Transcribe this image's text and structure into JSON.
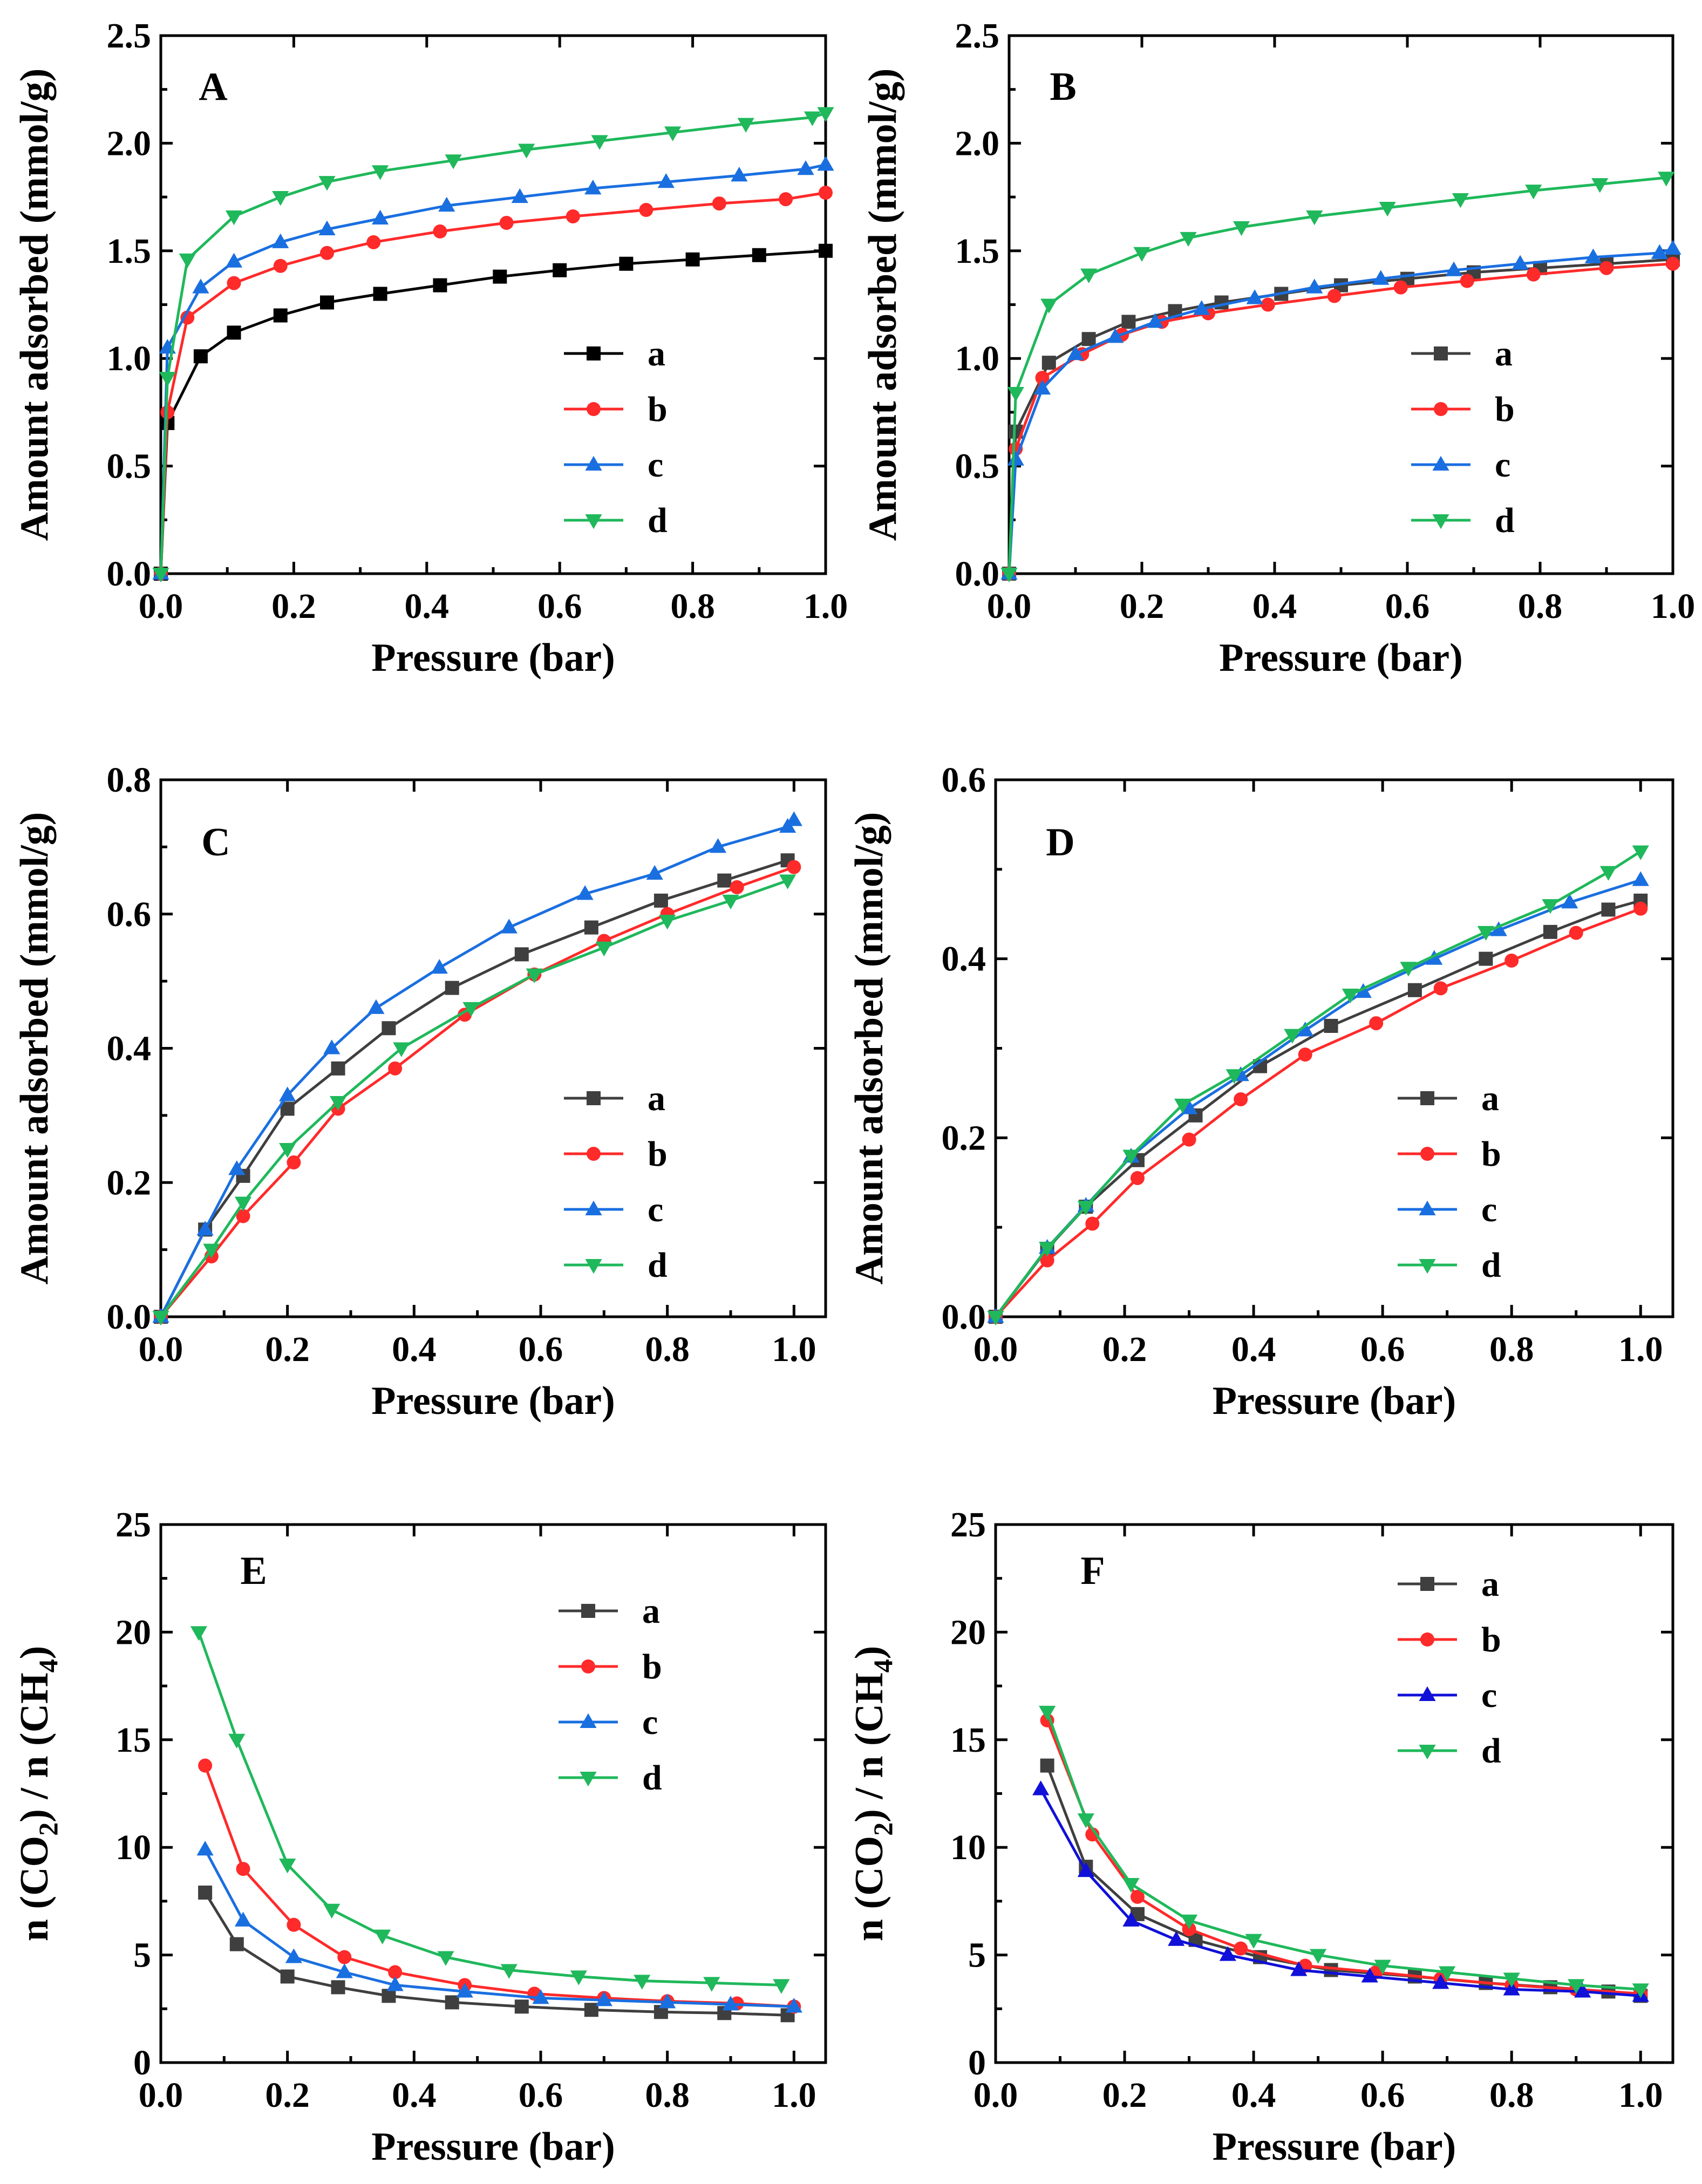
{
  "figure": {
    "description_free": true
  },
  "colors": {
    "a": "#3f3f3f",
    "b": "#ff2a2a",
    "c": "#1a6fe0",
    "d": "#1fb85b",
    "c_F": "#1010d8",
    "a_A": "#000000"
  },
  "chart_data": [
    {
      "panel": "A",
      "type": "line",
      "title": "A",
      "xlabel": "Pressure (bar)",
      "ylabel": "Amount adsorbed (mmol/g)",
      "xlim": [
        0,
        1.0
      ],
      "ylim": [
        0,
        2.5
      ],
      "xticks": [
        "0.0",
        "0.2",
        "0.4",
        "0.6",
        "0.8",
        "1.0"
      ],
      "yticks": [
        "0.0",
        "0.5",
        "1.0",
        "1.5",
        "2.0",
        "2.5"
      ],
      "legend": "right-middle",
      "series": [
        {
          "name": "a",
          "marker": "square",
          "x": [
            0,
            0.01,
            0.06,
            0.11,
            0.18,
            0.25,
            0.33,
            0.42,
            0.51,
            0.6,
            0.7,
            0.8,
            0.9,
            1.0
          ],
          "values": [
            0,
            0.7,
            1.01,
            1.12,
            1.2,
            1.26,
            1.3,
            1.34,
            1.38,
            1.41,
            1.44,
            1.46,
            1.48,
            1.5
          ]
        },
        {
          "name": "b",
          "marker": "circle",
          "x": [
            0,
            0.01,
            0.04,
            0.11,
            0.18,
            0.25,
            0.32,
            0.42,
            0.52,
            0.62,
            0.73,
            0.84,
            0.94,
            1.0
          ],
          "values": [
            0,
            0.75,
            1.19,
            1.35,
            1.43,
            1.49,
            1.54,
            1.59,
            1.63,
            1.66,
            1.69,
            1.72,
            1.74,
            1.77
          ]
        },
        {
          "name": "c",
          "marker": "triangle-up",
          "x": [
            0,
            0.01,
            0.06,
            0.11,
            0.18,
            0.25,
            0.33,
            0.43,
            0.54,
            0.65,
            0.76,
            0.87,
            0.97,
            1.0
          ],
          "values": [
            0,
            1.05,
            1.33,
            1.45,
            1.54,
            1.6,
            1.65,
            1.71,
            1.75,
            1.79,
            1.82,
            1.85,
            1.88,
            1.9
          ]
        },
        {
          "name": "d",
          "marker": "triangle-down",
          "x": [
            0,
            0.01,
            0.04,
            0.11,
            0.18,
            0.25,
            0.33,
            0.44,
            0.55,
            0.66,
            0.77,
            0.88,
            0.98,
            1.0
          ],
          "values": [
            0,
            0.91,
            1.46,
            1.66,
            1.75,
            1.82,
            1.87,
            1.92,
            1.97,
            2.01,
            2.05,
            2.09,
            2.12,
            2.14
          ]
        }
      ]
    },
    {
      "panel": "B",
      "type": "line",
      "title": "B",
      "xlabel": "Pressure (bar)",
      "ylabel": "Amount adsorbed (mmol/g)",
      "xlim": [
        0,
        1.0
      ],
      "ylim": [
        0,
        2.5
      ],
      "xticks": [
        "0.0",
        "0.2",
        "0.4",
        "0.6",
        "0.8",
        "1.0"
      ],
      "yticks": [
        "0.0",
        "0.5",
        "1.0",
        "1.5",
        "2.0",
        "2.5"
      ],
      "legend": "right-middle",
      "series": [
        {
          "name": "a",
          "marker": "square",
          "x": [
            0,
            0.01,
            0.06,
            0.12,
            0.18,
            0.25,
            0.32,
            0.41,
            0.5,
            0.6,
            0.7,
            0.8,
            0.9,
            1.0
          ],
          "values": [
            0,
            0.66,
            0.98,
            1.09,
            1.17,
            1.22,
            1.26,
            1.3,
            1.34,
            1.37,
            1.4,
            1.42,
            1.44,
            1.46
          ]
        },
        {
          "name": "b",
          "marker": "circle",
          "x": [
            0,
            0.01,
            0.05,
            0.11,
            0.17,
            0.23,
            0.3,
            0.39,
            0.49,
            0.59,
            0.69,
            0.79,
            0.9,
            1.0
          ],
          "values": [
            0,
            0.58,
            0.91,
            1.02,
            1.11,
            1.17,
            1.21,
            1.25,
            1.29,
            1.33,
            1.36,
            1.39,
            1.42,
            1.44
          ]
        },
        {
          "name": "c",
          "marker": "triangle-up",
          "x": [
            0,
            0.01,
            0.05,
            0.1,
            0.16,
            0.22,
            0.29,
            0.37,
            0.46,
            0.56,
            0.67,
            0.77,
            0.88,
            0.98,
            1.0
          ],
          "values": [
            0,
            0.53,
            0.86,
            1.02,
            1.1,
            1.17,
            1.23,
            1.28,
            1.33,
            1.37,
            1.41,
            1.44,
            1.47,
            1.49,
            1.51
          ]
        },
        {
          "name": "d",
          "marker": "triangle-down",
          "x": [
            0,
            0.01,
            0.06,
            0.12,
            0.2,
            0.27,
            0.35,
            0.46,
            0.57,
            0.68,
            0.79,
            0.89,
            0.99
          ],
          "values": [
            0,
            0.84,
            1.25,
            1.39,
            1.49,
            1.56,
            1.61,
            1.66,
            1.7,
            1.74,
            1.78,
            1.81,
            1.84
          ]
        }
      ]
    },
    {
      "panel": "C",
      "type": "line",
      "title": "C",
      "xlabel": "Pressure (bar)",
      "ylabel": "Amount adsorbed (mmol/g)",
      "xlim": [
        0,
        1.05
      ],
      "ylim": [
        0,
        0.8
      ],
      "xticks": [
        "0.0",
        "0.2",
        "0.4",
        "0.6",
        "0.8",
        "1.0"
      ],
      "yticks": [
        "0.0",
        "0.2",
        "0.4",
        "0.6",
        "0.8"
      ],
      "legend": "right-middle",
      "series": [
        {
          "name": "a",
          "marker": "square",
          "x": [
            0,
            0.07,
            0.13,
            0.2,
            0.28,
            0.36,
            0.46,
            0.57,
            0.68,
            0.79,
            0.89,
            0.99
          ],
          "values": [
            0,
            0.13,
            0.21,
            0.31,
            0.37,
            0.43,
            0.49,
            0.54,
            0.58,
            0.62,
            0.65,
            0.68
          ]
        },
        {
          "name": "b",
          "marker": "circle",
          "x": [
            0,
            0.08,
            0.13,
            0.21,
            0.28,
            0.37,
            0.48,
            0.59,
            0.7,
            0.8,
            0.91,
            1.0
          ],
          "values": [
            0,
            0.09,
            0.15,
            0.23,
            0.31,
            0.37,
            0.45,
            0.51,
            0.56,
            0.6,
            0.64,
            0.67
          ]
        },
        {
          "name": "c",
          "marker": "triangle-up",
          "x": [
            0,
            0.07,
            0.12,
            0.2,
            0.27,
            0.34,
            0.44,
            0.55,
            0.67,
            0.78,
            0.88,
            0.99,
            1.0
          ],
          "values": [
            0,
            0.13,
            0.22,
            0.33,
            0.4,
            0.46,
            0.52,
            0.58,
            0.63,
            0.66,
            0.7,
            0.73,
            0.74
          ]
        },
        {
          "name": "d",
          "marker": "triangle-down",
          "x": [
            0,
            0.08,
            0.13,
            0.2,
            0.28,
            0.38,
            0.49,
            0.59,
            0.7,
            0.8,
            0.9,
            0.99
          ],
          "values": [
            0,
            0.1,
            0.17,
            0.25,
            0.32,
            0.4,
            0.46,
            0.51,
            0.55,
            0.59,
            0.62,
            0.65
          ]
        }
      ]
    },
    {
      "panel": "D",
      "type": "line",
      "title": "D",
      "xlabel": "Pressure (bar)",
      "ylabel": "Amount adsorbed (mmol/g)",
      "xlim": [
        0,
        1.05
      ],
      "ylim": [
        0,
        0.6
      ],
      "xticks": [
        "0.0",
        "0.2",
        "0.4",
        "0.6",
        "0.8",
        "1.0"
      ],
      "yticks": [
        "0.0",
        "0.2",
        "0.4",
        "0.6"
      ],
      "legend": "right-middle",
      "series": [
        {
          "name": "a",
          "marker": "square",
          "x": [
            0,
            0.08,
            0.14,
            0.22,
            0.31,
            0.41,
            0.52,
            0.65,
            0.76,
            0.86,
            0.95,
            1.0
          ],
          "values": [
            0,
            0.076,
            0.123,
            0.175,
            0.225,
            0.28,
            0.325,
            0.365,
            0.4,
            0.43,
            0.455,
            0.465
          ]
        },
        {
          "name": "b",
          "marker": "circle",
          "x": [
            0,
            0.08,
            0.15,
            0.22,
            0.3,
            0.38,
            0.48,
            0.59,
            0.69,
            0.8,
            0.9,
            1.0
          ],
          "values": [
            0,
            0.063,
            0.104,
            0.155,
            0.198,
            0.243,
            0.293,
            0.328,
            0.367,
            0.398,
            0.429,
            0.456
          ]
        },
        {
          "name": "c",
          "marker": "triangle-up",
          "x": [
            0,
            0.08,
            0.14,
            0.21,
            0.3,
            0.38,
            0.48,
            0.57,
            0.68,
            0.78,
            0.89,
            1.0
          ],
          "values": [
            0,
            0.077,
            0.124,
            0.179,
            0.233,
            0.27,
            0.32,
            0.363,
            0.4,
            0.432,
            0.463,
            0.488
          ]
        },
        {
          "name": "d",
          "marker": "triangle-down",
          "x": [
            0,
            0.08,
            0.14,
            0.21,
            0.29,
            0.37,
            0.46,
            0.55,
            0.64,
            0.76,
            0.86,
            0.95,
            1.0
          ],
          "values": [
            0,
            0.077,
            0.123,
            0.18,
            0.237,
            0.27,
            0.315,
            0.36,
            0.39,
            0.43,
            0.46,
            0.497,
            0.52
          ]
        }
      ]
    },
    {
      "panel": "E",
      "type": "line",
      "title": "E",
      "xlabel": "Pressure (bar)",
      "ylabel": "n (CO2) / n (CH4)",
      "xlim": [
        0,
        1.05
      ],
      "ylim": [
        0,
        25
      ],
      "xticks": [
        "0.0",
        "0.2",
        "0.4",
        "0.6",
        "0.8",
        "1.0"
      ],
      "yticks": [
        "0",
        "5",
        "10",
        "15",
        "20",
        "25"
      ],
      "legend": "right-top",
      "series": [
        {
          "name": "a",
          "marker": "square",
          "x": [
            0.07,
            0.12,
            0.2,
            0.28,
            0.36,
            0.46,
            0.57,
            0.68,
            0.79,
            0.89,
            0.99
          ],
          "values": [
            7.9,
            5.5,
            4.0,
            3.5,
            3.1,
            2.8,
            2.6,
            2.45,
            2.35,
            2.3,
            2.2
          ]
        },
        {
          "name": "b",
          "marker": "circle",
          "x": [
            0.07,
            0.13,
            0.21,
            0.29,
            0.37,
            0.48,
            0.59,
            0.7,
            0.8,
            0.91,
            1.0
          ],
          "values": [
            13.8,
            9.0,
            6.4,
            4.9,
            4.2,
            3.6,
            3.2,
            3.0,
            2.85,
            2.75,
            2.6
          ]
        },
        {
          "name": "c",
          "marker": "triangle-up",
          "x": [
            0.07,
            0.13,
            0.21,
            0.29,
            0.37,
            0.48,
            0.6,
            0.7,
            0.8,
            0.9,
            1.0
          ],
          "values": [
            9.9,
            6.6,
            4.9,
            4.2,
            3.6,
            3.3,
            3.0,
            2.9,
            2.8,
            2.7,
            2.6
          ]
        },
        {
          "name": "d",
          "marker": "triangle-down",
          "x": [
            0.06,
            0.12,
            0.2,
            0.27,
            0.35,
            0.45,
            0.55,
            0.66,
            0.76,
            0.87,
            0.98
          ],
          "values": [
            20.0,
            15.0,
            9.2,
            7.1,
            5.9,
            4.9,
            4.3,
            4.0,
            3.8,
            3.7,
            3.6
          ]
        }
      ]
    },
    {
      "panel": "F",
      "type": "line",
      "title": "F",
      "xlabel": "Pressure (bar)",
      "ylabel": "n (CO2) / n (CH4)",
      "xlim": [
        0,
        1.05
      ],
      "ylim": [
        0,
        25
      ],
      "xticks": [
        "0.0",
        "0.2",
        "0.4",
        "0.6",
        "0.8",
        "1.0"
      ],
      "yticks": [
        "0",
        "5",
        "10",
        "15",
        "20",
        "25"
      ],
      "legend": "right-top",
      "series": [
        {
          "name": "a",
          "marker": "square",
          "x": [
            0.08,
            0.14,
            0.22,
            0.31,
            0.41,
            0.52,
            0.65,
            0.76,
            0.86,
            0.95,
            1.0
          ],
          "values": [
            13.8,
            9.1,
            6.9,
            5.7,
            4.9,
            4.3,
            4.0,
            3.7,
            3.5,
            3.3,
            3.1
          ]
        },
        {
          "name": "b",
          "marker": "circle",
          "x": [
            0.08,
            0.15,
            0.22,
            0.3,
            0.38,
            0.48,
            0.59,
            0.69,
            0.8,
            0.9,
            1.0
          ],
          "values": [
            15.9,
            10.6,
            7.7,
            6.2,
            5.3,
            4.5,
            4.2,
            3.9,
            3.6,
            3.4,
            3.2
          ]
        },
        {
          "name": "c",
          "marker": "triangle-up",
          "x": [
            0.07,
            0.14,
            0.21,
            0.28,
            0.36,
            0.47,
            0.58,
            0.69,
            0.8,
            0.91,
            1.0
          ],
          "values": [
            12.7,
            8.9,
            6.6,
            5.7,
            5.0,
            4.3,
            4.0,
            3.7,
            3.4,
            3.3,
            3.1
          ]
        },
        {
          "name": "d",
          "marker": "triangle-down",
          "x": [
            0.08,
            0.14,
            0.21,
            0.3,
            0.4,
            0.5,
            0.6,
            0.7,
            0.8,
            0.9,
            1.0
          ],
          "values": [
            16.3,
            11.3,
            8.3,
            6.6,
            5.7,
            5.0,
            4.5,
            4.2,
            3.9,
            3.6,
            3.4
          ]
        }
      ]
    }
  ]
}
